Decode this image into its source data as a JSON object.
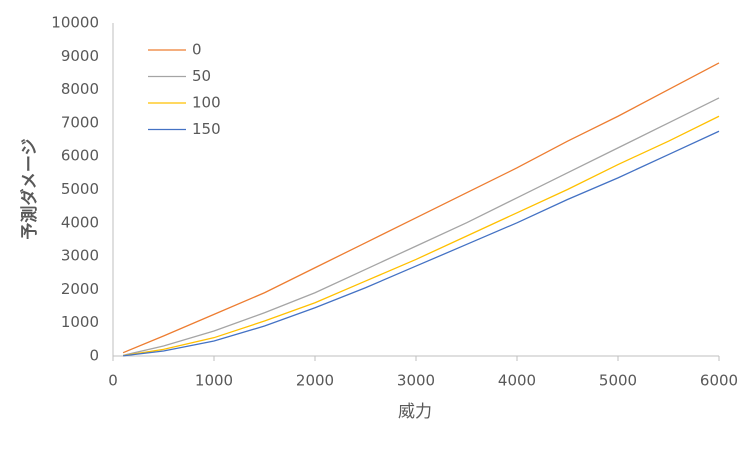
{
  "chart_data": {
    "type": "line",
    "xlabel": "威力",
    "ylabel": "予測ダメージ",
    "x": [
      100,
      500,
      1000,
      1500,
      2000,
      2500,
      3000,
      3500,
      4000,
      4500,
      5000,
      5500,
      6000
    ],
    "series": [
      {
        "name": "0",
        "color": "#ED7D31",
        "values": [
          100,
          600,
          1250,
          1900,
          2650,
          3400,
          4150,
          4900,
          5650,
          6450,
          7200,
          8000,
          8800
        ]
      },
      {
        "name": "50",
        "color": "#A5A5A5",
        "values": [
          20,
          300,
          750,
          1300,
          1900,
          2600,
          3300,
          4000,
          4750,
          5500,
          6250,
          7000,
          7750
        ]
      },
      {
        "name": "100",
        "color": "#FFC000",
        "values": [
          10,
          200,
          550,
          1050,
          1600,
          2250,
          2900,
          3600,
          4300,
          5000,
          5750,
          6450,
          7200
        ]
      },
      {
        "name": "150",
        "color": "#4472C4",
        "values": [
          5,
          150,
          450,
          900,
          1450,
          2050,
          2700,
          3350,
          4000,
          4700,
          5350,
          6050,
          6750
        ]
      }
    ],
    "xlim": [
      0,
      6000
    ],
    "xticks": [
      0,
      1000,
      2000,
      3000,
      4000,
      5000,
      6000
    ],
    "ylim": [
      0,
      10000
    ],
    "yticks": [
      0,
      1000,
      2000,
      3000,
      4000,
      5000,
      6000,
      7000,
      8000,
      9000,
      10000
    ],
    "grid": false,
    "legend": "upper left"
  }
}
